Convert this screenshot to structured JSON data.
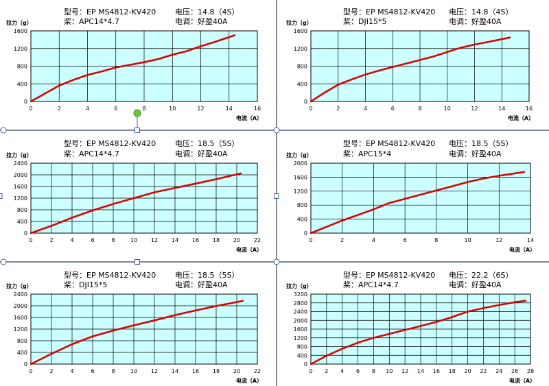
{
  "labels": {
    "model_prefix": "型号：",
    "prop_prefix": "桨：",
    "voltage_prefix": "电压：",
    "esc_prefix": "电调："
  },
  "colors": {
    "plot_bg": "#ccffff",
    "curve": "#dd0000",
    "grid": "#000000",
    "divider": "#2a3d5a",
    "handle_fill": "#ffffff",
    "handle_stroke": "#3a5f9a",
    "rotate_handle": "#66cc33"
  },
  "icons": {
    "selection_handles": "square-handle-icon",
    "rotation_handle": "green-circle-rotate-icon"
  },
  "chart_data": [
    {
      "type": "line",
      "model": "EP MS4812-KV420",
      "prop": "APC14*4.7",
      "voltage": "14.8（4S）",
      "esc": "好盈40A",
      "ylabel": "拉力（g）",
      "xlabel": "电流（A）",
      "xlim": [
        0,
        16
      ],
      "ylim": [
        0,
        1600
      ],
      "xticks": [
        0,
        2,
        4,
        6,
        8,
        10,
        12,
        14,
        16
      ],
      "yticks": [
        0,
        400,
        800,
        1200,
        1600
      ],
      "grid": true,
      "series": [
        {
          "x": [
            0,
            1,
            2,
            3,
            4,
            5,
            6,
            7,
            8,
            9,
            10,
            11,
            12,
            13,
            14.4
          ],
          "y": [
            0,
            180,
            360,
            490,
            600,
            680,
            770,
            830,
            890,
            960,
            1060,
            1140,
            1250,
            1350,
            1500
          ]
        }
      ]
    },
    {
      "type": "line",
      "model": "EP MS4812-KV420",
      "prop": "DJI15*5",
      "voltage": "14.8（4S）",
      "esc": "好盈40A",
      "ylabel": "拉力（g）",
      "xlabel": "电流（A）",
      "xlim": [
        0,
        16
      ],
      "ylim": [
        0,
        1600
      ],
      "xticks": [
        0,
        2,
        4,
        6,
        8,
        10,
        12,
        14,
        16
      ],
      "yticks": [
        0,
        400,
        800,
        1200,
        1600
      ],
      "grid": true,
      "series": [
        {
          "x": [
            0,
            1,
            2,
            3,
            4,
            5,
            6,
            7,
            8,
            9,
            10,
            11,
            12,
            13,
            14.6
          ],
          "y": [
            0,
            200,
            380,
            500,
            610,
            700,
            780,
            860,
            940,
            1020,
            1120,
            1220,
            1290,
            1350,
            1450
          ]
        }
      ]
    },
    {
      "type": "line",
      "model": "EP MS4812-KV420",
      "prop": "APC14*4.7",
      "voltage": "18.5（5S）",
      "esc": "好盈40A",
      "ylabel": "拉力（g）",
      "xlabel": "电流（A）",
      "xlim": [
        0,
        22
      ],
      "ylim": [
        0,
        2400
      ],
      "xticks": [
        0,
        2,
        4,
        6,
        8,
        10,
        12,
        14,
        16,
        18,
        20,
        22
      ],
      "yticks": [
        0,
        400,
        800,
        1200,
        1600,
        2000,
        2400
      ],
      "grid": true,
      "series": [
        {
          "x": [
            0,
            2,
            4,
            6,
            8,
            10,
            12,
            14,
            16,
            18,
            20.4
          ],
          "y": [
            0,
            250,
            530,
            780,
            1000,
            1200,
            1400,
            1550,
            1700,
            1850,
            2050
          ]
        }
      ]
    },
    {
      "type": "line",
      "model": "EP MS4812-KV420",
      "prop": "APC15*4",
      "voltage": "18.5（5S）",
      "esc": "好盈40A",
      "ylabel": "拉力（g）",
      "xlabel": "电流（A）",
      "xlim": [
        0,
        14
      ],
      "ylim": [
        0,
        2000
      ],
      "xticks": [
        0,
        2,
        4,
        6,
        8,
        10,
        12,
        14
      ],
      "yticks": [
        0,
        400,
        800,
        1200,
        1600,
        2000
      ],
      "grid": true,
      "series": [
        {
          "x": [
            0,
            1,
            2,
            3,
            4,
            5,
            6,
            7,
            8,
            9,
            10,
            11,
            12,
            13.6
          ],
          "y": [
            0,
            180,
            360,
            520,
            680,
            860,
            980,
            1100,
            1220,
            1340,
            1460,
            1560,
            1640,
            1750
          ]
        }
      ]
    },
    {
      "type": "line",
      "model": "EP MS4812-KV420",
      "prop": "DJI15*5",
      "voltage": "18.5（5S）",
      "esc": "好盈40A",
      "ylabel": "拉力（g）",
      "xlabel": "电流（A）",
      "xlim": [
        0,
        22
      ],
      "ylim": [
        0,
        2400
      ],
      "xticks": [
        0,
        2,
        4,
        6,
        8,
        10,
        12,
        14,
        16,
        18,
        20,
        22
      ],
      "yticks": [
        0,
        400,
        800,
        1200,
        1600,
        2000,
        2400
      ],
      "grid": true,
      "series": [
        {
          "x": [
            0,
            2,
            4,
            6,
            8,
            10,
            12,
            14,
            16,
            18,
            20.6
          ],
          "y": [
            0,
            350,
            680,
            950,
            1150,
            1330,
            1500,
            1680,
            1840,
            1990,
            2170
          ]
        }
      ]
    },
    {
      "type": "line",
      "model": "EP MS4812-KV420",
      "prop": "APC14*4.7",
      "voltage": "22.2（6S）",
      "esc": "好盈40A",
      "ylabel": "拉力（g）",
      "xlabel": "电流（A）",
      "xlim": [
        0,
        28
      ],
      "ylim": [
        0,
        3200
      ],
      "xticks": [
        0,
        2,
        4,
        6,
        8,
        10,
        12,
        14,
        16,
        18,
        20,
        22,
        24,
        26,
        28
      ],
      "yticks": [
        0,
        400,
        800,
        1200,
        1600,
        2000,
        2400,
        2800,
        3200
      ],
      "grid": true,
      "series": [
        {
          "x": [
            0,
            2,
            4,
            6,
            8,
            10,
            12,
            14,
            16,
            18,
            20,
            22,
            24,
            26,
            27.4
          ],
          "y": [
            0,
            380,
            700,
            980,
            1200,
            1380,
            1560,
            1740,
            1930,
            2150,
            2400,
            2560,
            2700,
            2830,
            2900
          ]
        }
      ]
    }
  ]
}
